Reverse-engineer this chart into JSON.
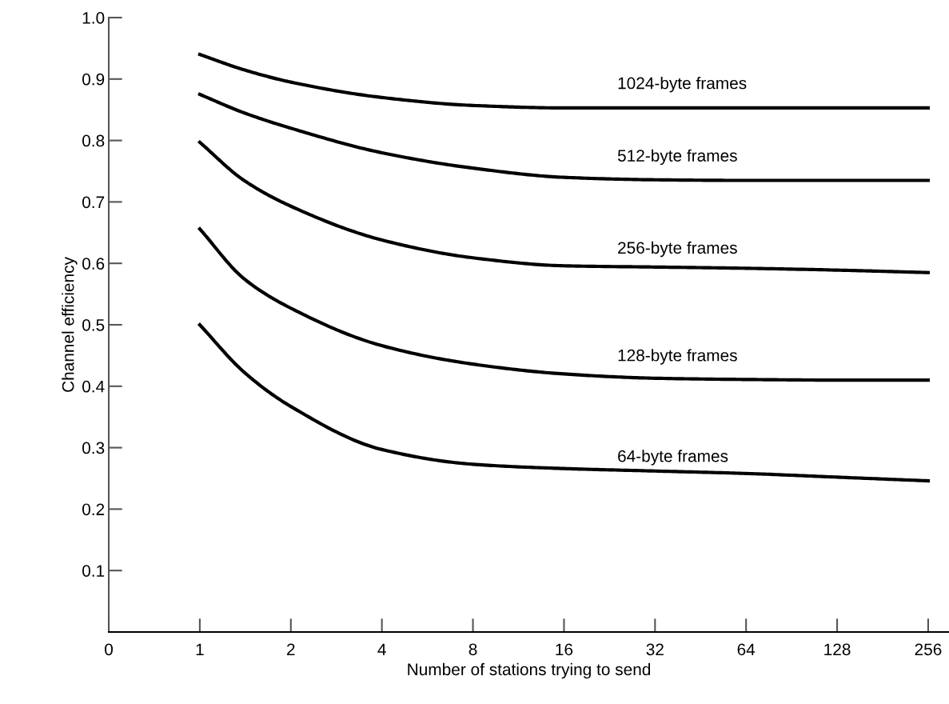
{
  "chart_data": {
    "type": "line",
    "xlabel": "Number of stations trying to send",
    "ylabel": "Channel efficiency",
    "xlim": [
      0,
      300
    ],
    "ylim": [
      0,
      1.0
    ],
    "log": "x",
    "xticks": [
      0,
      1,
      2,
      4,
      8,
      16,
      32,
      64,
      128,
      256
    ],
    "yticks": [
      0.1,
      0.2,
      0.3,
      0.4,
      0.5,
      0.6,
      0.7,
      0.8,
      0.9,
      {
        "value": 1,
        "label": "1.0"
      }
    ],
    "x": [
      1,
      1.4,
      2,
      4,
      8,
      16,
      32,
      64,
      128,
      256
    ],
    "grid": false,
    "legend": false,
    "marker": "none",
    "line_style": "solid",
    "series": [
      {
        "name": "1024-byte frames",
        "color": "#000000",
        "values": [
          0.94,
          0.915,
          0.895,
          0.87,
          0.857,
          0.853,
          0.853,
          0.853,
          0.853,
          0.853
        ]
      },
      {
        "name": "512-byte frames",
        "color": "#000000",
        "values": [
          0.875,
          0.845,
          0.82,
          0.78,
          0.755,
          0.74,
          0.736,
          0.735,
          0.735,
          0.735
        ]
      },
      {
        "name": "256-byte frames",
        "color": "#000000",
        "values": [
          0.797,
          0.735,
          0.693,
          0.638,
          0.609,
          0.596,
          0.594,
          0.592,
          0.589,
          0.585
        ]
      },
      {
        "name": "128-byte frames",
        "color": "#000000",
        "values": [
          0.656,
          0.575,
          0.527,
          0.466,
          0.436,
          0.42,
          0.413,
          0.411,
          0.41,
          0.41
        ]
      },
      {
        "name": "64-byte frames",
        "color": "#000000",
        "values": [
          0.5,
          0.423,
          0.367,
          0.297,
          0.273,
          0.266,
          0.262,
          0.258,
          0.252,
          0.246
        ]
      }
    ]
  }
}
